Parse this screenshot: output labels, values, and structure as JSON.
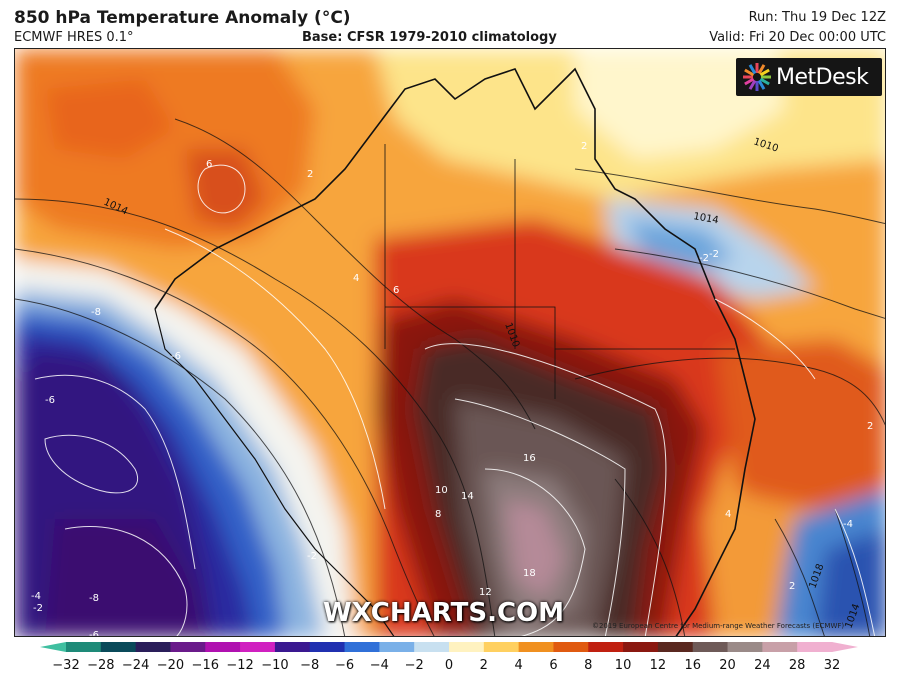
{
  "header": {
    "title": "850 hPa Temperature Anomaly (°C)",
    "model": "ECMWF HRES 0.1°",
    "base": "Base: CFSR 1979-2010 climatology",
    "run": "Run: Thu 19 Dec 12Z",
    "valid": "Valid: Fri 20 Dec 00:00 UTC"
  },
  "brand": {
    "logo_text": "MetDesk",
    "logo_icon": "metdesk-starburst-icon"
  },
  "watermark": "WXCHARTS.COM",
  "copyright": "©2019 European Centre for Medium-range Weather Forecasts (ECMWF)",
  "map": {
    "region": "Australia",
    "variable": "850 hPa temperature anomaly",
    "pressure_labels": [
      "1010",
      "1014",
      "1014",
      "1010",
      "1018",
      "1014"
    ],
    "anomaly_labels": [
      "6",
      "4",
      "6",
      "-8",
      "-6",
      "-6",
      "-2",
      "2",
      "16",
      "14",
      "10",
      "8",
      "18",
      "12",
      "2",
      "4",
      "-4",
      "-2",
      "-8",
      "-4",
      "-2",
      "-6",
      "2",
      "-2",
      "2"
    ]
  },
  "colorbar": {
    "ticks": [
      "−32",
      "−28",
      "−24",
      "−20",
      "−16",
      "−12",
      "−10",
      "−8",
      "−6",
      "−4",
      "−2",
      "0",
      "2",
      "4",
      "6",
      "8",
      "10",
      "12",
      "16",
      "20",
      "24",
      "28",
      "32"
    ],
    "colors": [
      "#3fbfa0",
      "#1e8a78",
      "#0a4a5a",
      "#2a1e5a",
      "#6a1a8a",
      "#b010b0",
      "#d020c0",
      "#3a1890",
      "#2030b0",
      "#3070d8",
      "#7ab0e8",
      "#c8e0f0",
      "#fff2c0",
      "#ffd060",
      "#f09020",
      "#e05a10",
      "#c02010",
      "#8a1810",
      "#5a2820",
      "#6e5a58",
      "#9a8a88",
      "#c8a0a8",
      "#f0b0d0"
    ]
  }
}
